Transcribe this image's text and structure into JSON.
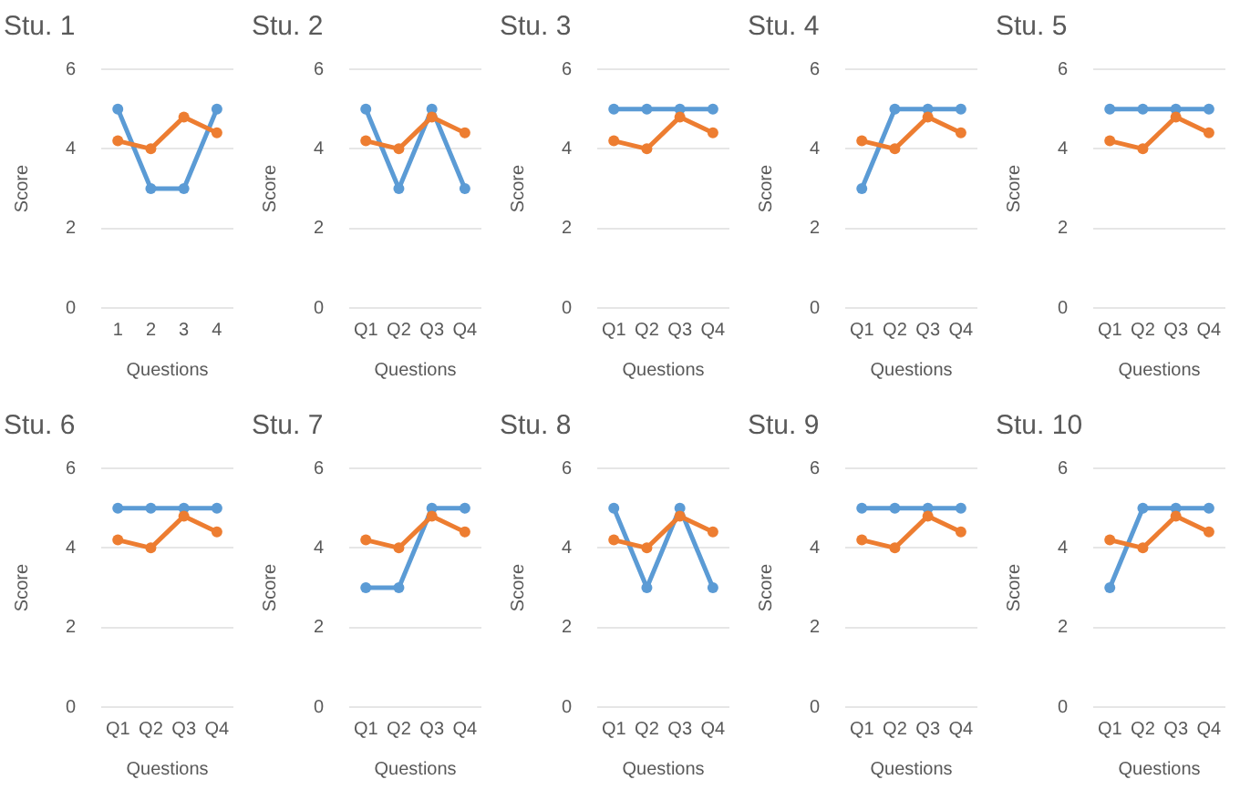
{
  "chart_data": [
    {
      "type": "line",
      "title": "Stu. 1",
      "xlabel": "Questions",
      "ylabel": "Score",
      "categories": [
        "1",
        "2",
        "3",
        "4"
      ],
      "series": [
        {
          "color": "#5b9bd5",
          "values": [
            5,
            3,
            3,
            5
          ]
        },
        {
          "color": "#ed7d31",
          "values": [
            4.2,
            4.0,
            4.8,
            4.4
          ]
        }
      ],
      "ylim": [
        0,
        6
      ],
      "yticks": [
        0,
        2,
        4,
        6
      ],
      "grid": "y",
      "marker": "circle",
      "legend": false
    },
    {
      "type": "line",
      "title": "Stu. 2",
      "xlabel": "Questions",
      "ylabel": "Score",
      "categories": [
        "Q1",
        "Q2",
        "Q3",
        "Q4"
      ],
      "series": [
        {
          "color": "#5b9bd5",
          "values": [
            5,
            3,
            5,
            3
          ]
        },
        {
          "color": "#ed7d31",
          "values": [
            4.2,
            4.0,
            4.8,
            4.4
          ]
        }
      ],
      "ylim": [
        0,
        6
      ],
      "yticks": [
        0,
        2,
        4,
        6
      ],
      "grid": "y",
      "marker": "circle",
      "legend": false
    },
    {
      "type": "line",
      "title": "Stu. 3",
      "xlabel": "Questions",
      "ylabel": "Score",
      "categories": [
        "Q1",
        "Q2",
        "Q3",
        "Q4"
      ],
      "series": [
        {
          "color": "#5b9bd5",
          "values": [
            5,
            5,
            5,
            5
          ]
        },
        {
          "color": "#ed7d31",
          "values": [
            4.2,
            4.0,
            4.8,
            4.4
          ]
        }
      ],
      "ylim": [
        0,
        6
      ],
      "yticks": [
        0,
        2,
        4,
        6
      ],
      "grid": "y",
      "marker": "circle",
      "legend": false
    },
    {
      "type": "line",
      "title": "Stu. 4",
      "xlabel": "Questions",
      "ylabel": "Score",
      "categories": [
        "Q1",
        "Q2",
        "Q3",
        "Q4"
      ],
      "series": [
        {
          "color": "#5b9bd5",
          "values": [
            3,
            5,
            5,
            5
          ]
        },
        {
          "color": "#ed7d31",
          "values": [
            4.2,
            4.0,
            4.8,
            4.4
          ]
        }
      ],
      "ylim": [
        0,
        6
      ],
      "yticks": [
        0,
        2,
        4,
        6
      ],
      "grid": "y",
      "marker": "circle",
      "legend": false
    },
    {
      "type": "line",
      "title": "Stu. 5",
      "xlabel": "Questions",
      "ylabel": "Score",
      "categories": [
        "Q1",
        "Q2",
        "Q3",
        "Q4"
      ],
      "series": [
        {
          "color": "#5b9bd5",
          "values": [
            5,
            5,
            5,
            5
          ]
        },
        {
          "color": "#ed7d31",
          "values": [
            4.2,
            4.0,
            4.8,
            4.4
          ]
        }
      ],
      "ylim": [
        0,
        6
      ],
      "yticks": [
        0,
        2,
        4,
        6
      ],
      "grid": "y",
      "marker": "circle",
      "legend": false
    },
    {
      "type": "line",
      "title": "Stu. 6",
      "xlabel": "Questions",
      "ylabel": "Score",
      "categories": [
        "Q1",
        "Q2",
        "Q3",
        "Q4"
      ],
      "series": [
        {
          "color": "#5b9bd5",
          "values": [
            5,
            5,
            5,
            5
          ]
        },
        {
          "color": "#ed7d31",
          "values": [
            4.2,
            4.0,
            4.8,
            4.4
          ]
        }
      ],
      "ylim": [
        0,
        6
      ],
      "yticks": [
        0,
        2,
        4,
        6
      ],
      "grid": "y",
      "marker": "circle",
      "legend": false
    },
    {
      "type": "line",
      "title": "Stu. 7",
      "xlabel": "Questions",
      "ylabel": "Score",
      "categories": [
        "Q1",
        "Q2",
        "Q3",
        "Q4"
      ],
      "series": [
        {
          "color": "#5b9bd5",
          "values": [
            3,
            3,
            5,
            5
          ]
        },
        {
          "color": "#ed7d31",
          "values": [
            4.2,
            4.0,
            4.8,
            4.4
          ]
        }
      ],
      "ylim": [
        0,
        6
      ],
      "yticks": [
        0,
        2,
        4,
        6
      ],
      "grid": "y",
      "marker": "circle",
      "legend": false
    },
    {
      "type": "line",
      "title": "Stu. 8",
      "xlabel": "Questions",
      "ylabel": "Score",
      "categories": [
        "Q1",
        "Q2",
        "Q3",
        "Q4"
      ],
      "series": [
        {
          "color": "#5b9bd5",
          "values": [
            5,
            3,
            5,
            3
          ]
        },
        {
          "color": "#ed7d31",
          "values": [
            4.2,
            4.0,
            4.8,
            4.4
          ]
        }
      ],
      "ylim": [
        0,
        6
      ],
      "yticks": [
        0,
        2,
        4,
        6
      ],
      "grid": "y",
      "marker": "circle",
      "legend": false
    },
    {
      "type": "line",
      "title": "Stu. 9",
      "xlabel": "Questions",
      "ylabel": "Score",
      "categories": [
        "Q1",
        "Q2",
        "Q3",
        "Q4"
      ],
      "series": [
        {
          "color": "#5b9bd5",
          "values": [
            5,
            5,
            5,
            5
          ]
        },
        {
          "color": "#ed7d31",
          "values": [
            4.2,
            4.0,
            4.8,
            4.4
          ]
        }
      ],
      "ylim": [
        0,
        6
      ],
      "yticks": [
        0,
        2,
        4,
        6
      ],
      "grid": "y",
      "marker": "circle",
      "legend": false
    },
    {
      "type": "line",
      "title": "Stu. 10",
      "xlabel": "Questions",
      "ylabel": "Score",
      "categories": [
        "Q1",
        "Q2",
        "Q3",
        "Q4"
      ],
      "series": [
        {
          "color": "#5b9bd5",
          "values": [
            3,
            5,
            5,
            5
          ]
        },
        {
          "color": "#ed7d31",
          "values": [
            4.2,
            4.0,
            4.8,
            4.4
          ]
        }
      ],
      "ylim": [
        0,
        6
      ],
      "yticks": [
        0,
        2,
        4,
        6
      ],
      "grid": "y",
      "marker": "circle",
      "legend": false
    }
  ]
}
